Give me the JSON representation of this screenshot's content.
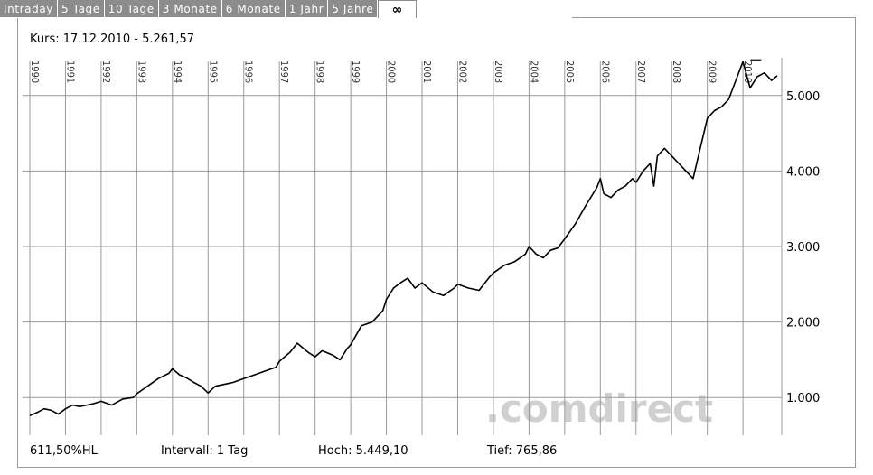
{
  "tabs": [
    {
      "label": "Intraday"
    },
    {
      "label": "5 Tage"
    },
    {
      "label": "10 Tage"
    },
    {
      "label": "3 Monate"
    },
    {
      "label": "6 Monate"
    },
    {
      "label": "1 Jahr"
    },
    {
      "label": "5 Jahre"
    },
    {
      "label": "∞",
      "active": true
    }
  ],
  "header": {
    "kurs": "Kurs: 17.12.2010 - 5.261,57"
  },
  "footer": {
    "change": "611,50%HL",
    "intervall": "Intervall: 1 Tag",
    "hoch": "Hoch:  5.449,10",
    "tief": "Tief:   765,86"
  },
  "watermark": ".comdirect",
  "colors": {
    "line": "#000000",
    "grid": "#9a9a9a",
    "tab_bg": "#8c8c8c",
    "watermark": "#d0d0d0"
  },
  "chart_data": {
    "type": "line",
    "x_labels": [
      "1990",
      "1991",
      "1992",
      "1993",
      "1994",
      "1995",
      "1996",
      "1997",
      "1998",
      "1999",
      "2000",
      "2001",
      "2002",
      "2003",
      "2004",
      "2005",
      "2006",
      "2007",
      "2008",
      "2009",
      "2010"
    ],
    "y_tick_labels": [
      "1.000",
      "2.000",
      "3.000",
      "4.000",
      "5.000"
    ],
    "y_ticks": [
      1000,
      2000,
      3000,
      4000,
      5000
    ],
    "ylim": [
      500,
      5500
    ],
    "xlim": [
      1990.0,
      2010.96
    ],
    "grid": true,
    "series": [
      {
        "x": [
          1990.0,
          1990.2,
          1990.4,
          1990.6,
          1990.8,
          1991.0,
          1991.2,
          1991.4,
          1991.6,
          1991.8,
          1992.0,
          1992.3,
          1992.6,
          1992.9,
          1993.0,
          1993.3,
          1993.6,
          1993.9,
          1994.0,
          1994.2,
          1994.4,
          1994.6,
          1994.8,
          1995.0,
          1995.2,
          1995.5,
          1995.7,
          1996.0,
          1996.3,
          1996.6,
          1996.9,
          1997.0,
          1997.3,
          1997.5,
          1997.6,
          1997.8,
          1998.0,
          1998.2,
          1998.5,
          1998.7,
          1998.9,
          1999.0,
          1999.3,
          1999.6,
          1999.9,
          2000.0,
          2000.2,
          2000.4,
          2000.6,
          2000.8,
          2001.0,
          2001.3,
          2001.6,
          2001.9,
          2002.0,
          2002.3,
          2002.6,
          2002.9,
          2003.0,
          2003.3,
          2003.6,
          2003.9,
          2004.0,
          2004.2,
          2004.4,
          2004.6,
          2004.8,
          2005.0,
          2005.3,
          2005.6,
          2005.9,
          2006.0,
          2006.1,
          2006.3,
          2006.5,
          2006.7,
          2006.9,
          2007.0,
          2007.2,
          2007.4,
          2007.5,
          2007.6,
          2007.8,
          2008.0,
          2008.2,
          2008.4,
          2008.6,
          2008.8,
          2009.0,
          2009.2,
          2009.4,
          2009.6,
          2009.8,
          2010.0,
          2010.2,
          2010.4,
          2010.6,
          2010.8,
          2010.96
        ],
        "y": [
          760,
          800,
          850,
          830,
          780,
          850,
          900,
          880,
          900,
          920,
          950,
          900,
          980,
          1000,
          1050,
          1150,
          1250,
          1320,
          1380,
          1300,
          1260,
          1200,
          1150,
          1060,
          1150,
          1180,
          1200,
          1250,
          1300,
          1350,
          1400,
          1480,
          1600,
          1720,
          1680,
          1600,
          1540,
          1620,
          1560,
          1500,
          1650,
          1700,
          1950,
          2000,
          2150,
          2300,
          2450,
          2520,
          2580,
          2450,
          2520,
          2400,
          2350,
          2450,
          2500,
          2450,
          2420,
          2600,
          2650,
          2750,
          2800,
          2900,
          3000,
          2900,
          2850,
          2950,
          2980,
          3100,
          3300,
          3550,
          3780,
          3900,
          3700,
          3650,
          3750,
          3800,
          3900,
          3850,
          4000,
          4100,
          3800,
          4200,
          4300,
          4200,
          4100,
          4000,
          3900,
          4300,
          4700,
          4800,
          4850,
          4950,
          5200,
          5450,
          5100,
          5250,
          5300,
          5200,
          5261.57
        ]
      }
    ]
  }
}
